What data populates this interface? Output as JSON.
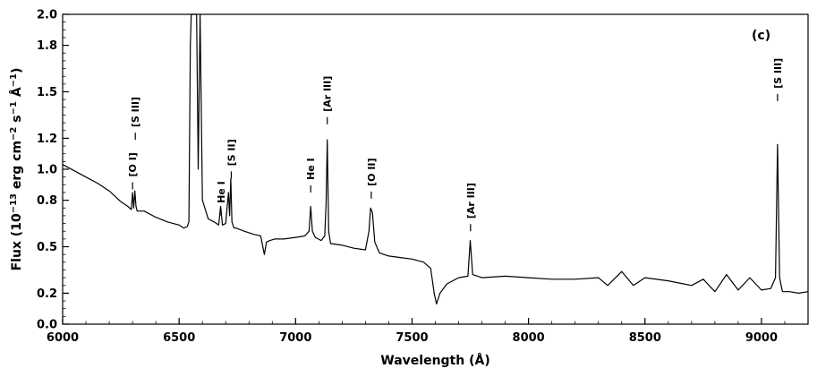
{
  "chart_data": {
    "type": "line",
    "panel_label": "(c)",
    "xlabel": "Wavelength (Å)",
    "ylabel_parts": {
      "prefix": "Flux (10",
      "exp1": "−13",
      "mid1": " erg cm",
      "exp2": "−2",
      "mid2": " s",
      "exp3": "−1",
      "mid3": " Å",
      "exp4": "−1",
      "suffix": ")"
    },
    "xlim": [
      6000,
      9200
    ],
    "ylim": [
      0,
      2.0
    ],
    "grid": false,
    "legend": "none",
    "x_ticks": [
      6000,
      6500,
      7000,
      7500,
      8000,
      8500,
      9000
    ],
    "x_tick_labels": [
      "6000",
      "6500",
      "7000",
      "7500",
      "8000",
      "8500",
      "9000"
    ],
    "y_ticks": [
      0.0,
      0.2,
      0.5,
      0.8,
      1.0,
      1.2,
      1.5,
      1.8,
      2.0
    ],
    "y_tick_labels": [
      "0.0",
      "0.2",
      "0.5",
      "0.8",
      "1.0",
      "1.2",
      "1.5",
      "1.8",
      "2.0"
    ],
    "line_color": "#000000",
    "series": [
      {
        "x": [
          6000,
          6050,
          6100,
          6150,
          6200,
          6250,
          6280,
          6295,
          6300,
          6305,
          6310,
          6315,
          6320,
          6350,
          6400,
          6450,
          6500,
          6520,
          6535,
          6542,
          6548,
          6552,
          6556,
          6562,
          6568,
          6575,
          6582,
          6590,
          6600,
          6625,
          6650,
          6670,
          6678,
          6686,
          6700,
          6712,
          6717,
          6722,
          6727,
          6731,
          6736,
          6745,
          6780,
          6820,
          6850,
          6866,
          6875,
          6890,
          6910,
          6950,
          7000,
          7040,
          7058,
          7065,
          7072,
          7085,
          7110,
          7125,
          7131,
          7136,
          7142,
          7150,
          7200,
          7250,
          7300,
          7315,
          7322,
          7330,
          7340,
          7360,
          7400,
          7450,
          7500,
          7550,
          7580,
          7595,
          7605,
          7620,
          7650,
          7700,
          7740,
          7750,
          7760,
          7800,
          7900,
          8000,
          8100,
          8200,
          8300,
          8340,
          8400,
          8450,
          8500,
          8600,
          8700,
          8750,
          8800,
          8850,
          8900,
          8950,
          9000,
          9040,
          9060,
          9069,
          9078,
          9090,
          9120,
          9160,
          9200
        ],
        "y": [
          1.03,
          0.99,
          0.95,
          0.91,
          0.86,
          0.79,
          0.76,
          0.74,
          0.85,
          0.75,
          0.86,
          0.76,
          0.73,
          0.73,
          0.69,
          0.66,
          0.64,
          0.62,
          0.63,
          0.66,
          1.8,
          2.0,
          2.0,
          2.0,
          2.0,
          2.0,
          1.0,
          2.0,
          0.8,
          0.68,
          0.66,
          0.64,
          0.76,
          0.64,
          0.65,
          0.85,
          0.7,
          0.94,
          0.66,
          0.64,
          0.62,
          0.62,
          0.6,
          0.58,
          0.57,
          0.45,
          0.53,
          0.54,
          0.55,
          0.55,
          0.56,
          0.57,
          0.6,
          0.76,
          0.6,
          0.56,
          0.54,
          0.57,
          0.78,
          1.19,
          0.6,
          0.52,
          0.51,
          0.49,
          0.48,
          0.6,
          0.75,
          0.72,
          0.53,
          0.46,
          0.44,
          0.43,
          0.42,
          0.4,
          0.36,
          0.2,
          0.13,
          0.2,
          0.26,
          0.3,
          0.31,
          0.54,
          0.32,
          0.3,
          0.31,
          0.3,
          0.29,
          0.29,
          0.3,
          0.25,
          0.34,
          0.25,
          0.3,
          0.28,
          0.25,
          0.29,
          0.21,
          0.32,
          0.22,
          0.3,
          0.22,
          0.23,
          0.3,
          1.16,
          0.3,
          0.21,
          0.21,
          0.2,
          0.21
        ]
      }
    ],
    "annotations": [
      {
        "x": 6300,
        "y": 0.87,
        "text": "[O I]"
      },
      {
        "x": 6312,
        "y": 1.19,
        "text": "[S III]"
      },
      {
        "x": 6680,
        "y": 0.7,
        "text": "He I"
      },
      {
        "x": 6724,
        "y": 0.94,
        "text": "[S II]"
      },
      {
        "x": 7065,
        "y": 0.85,
        "text": "He I"
      },
      {
        "x": 7136,
        "y": 1.29,
        "text": "[Ar III]"
      },
      {
        "x": 7325,
        "y": 0.81,
        "text": "[O II]"
      },
      {
        "x": 7751,
        "y": 0.6,
        "text": "[Ar III]"
      },
      {
        "x": 9069,
        "y": 1.44,
        "text": "[S III]"
      }
    ]
  }
}
